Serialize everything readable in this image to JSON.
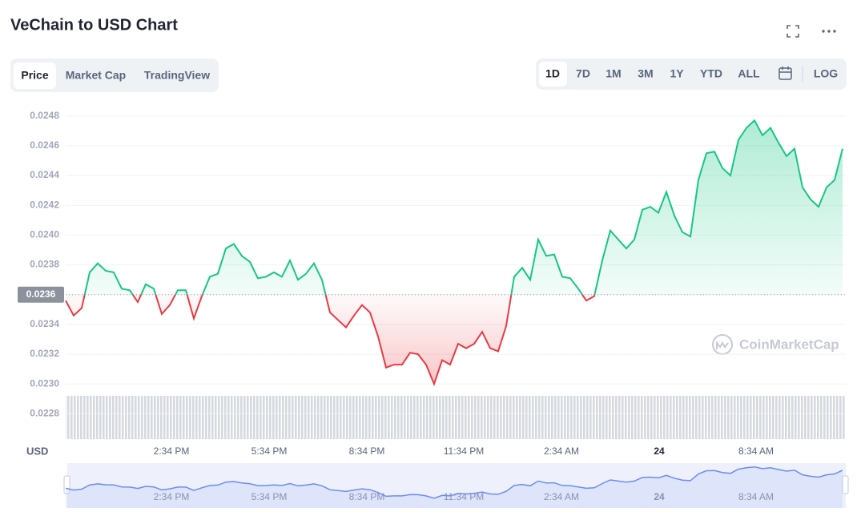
{
  "header": {
    "title": "VeChain to USD Chart"
  },
  "tabs": [
    "Price",
    "Market Cap",
    "TradingView"
  ],
  "active_tab": 0,
  "ranges": [
    "1D",
    "7D",
    "1M",
    "3M",
    "1Y",
    "YTD",
    "ALL"
  ],
  "active_range": 0,
  "log_button": "LOG",
  "chart_data": {
    "type": "line",
    "currency_label": "USD",
    "watermark": "CoinMarketCap",
    "colors": {
      "up": "#16c784",
      "down": "#ea3943",
      "navigator": "#6a8cf2"
    },
    "baseline": 0.0236,
    "values": [
      0.02356,
      0.02346,
      0.02351,
      0.02375,
      0.02381,
      0.02376,
      0.02375,
      0.02364,
      0.02363,
      0.02355,
      0.02367,
      0.02364,
      0.02347,
      0.02353,
      0.02363,
      0.02363,
      0.02344,
      0.02359,
      0.02372,
      0.02374,
      0.02391,
      0.02394,
      0.02386,
      0.02382,
      0.02371,
      0.02372,
      0.02375,
      0.02372,
      0.02383,
      0.0237,
      0.02374,
      0.02381,
      0.0237,
      0.02348,
      0.02343,
      0.02338,
      0.02346,
      0.02353,
      0.02348,
      0.02332,
      0.02311,
      0.02313,
      0.02313,
      0.02321,
      0.0232,
      0.02313,
      0.023,
      0.02316,
      0.02313,
      0.02327,
      0.02324,
      0.02327,
      0.02335,
      0.02324,
      0.02322,
      0.02339,
      0.02372,
      0.02378,
      0.0237,
      0.02397,
      0.02386,
      0.02387,
      0.02372,
      0.02371,
      0.02364,
      0.02356,
      0.02359,
      0.02383,
      0.02403,
      0.02397,
      0.02391,
      0.02397,
      0.02417,
      0.02419,
      0.02415,
      0.02429,
      0.02413,
      0.02402,
      0.02399,
      0.02437,
      0.02455,
      0.02456,
      0.02445,
      0.0244,
      0.02464,
      0.02472,
      0.02477,
      0.02467,
      0.02472,
      0.02462,
      0.02453,
      0.02458,
      0.02432,
      0.02424,
      0.02419,
      0.02432,
      0.02437,
      0.02458
    ],
    "xlim": [
      0,
      97.4
    ],
    "xticks": [
      {
        "value": 13.2,
        "label": "2:34 PM"
      },
      {
        "value": 25.4,
        "label": "5:34 PM"
      },
      {
        "value": 37.6,
        "label": "8:34 PM"
      },
      {
        "value": 49.7,
        "label": "11:34 PM"
      },
      {
        "value": 61.9,
        "label": "2:34 AM"
      },
      {
        "value": 74.1,
        "label": "24"
      },
      {
        "value": 86.2,
        "label": "8:34 AM"
      }
    ],
    "ylim": [
      0.02263,
      0.02489
    ],
    "yticks": [
      0.0228,
      {
        "value": 0.023,
        "label": "0.0230"
      },
      0.0232,
      0.0234,
      0.0236,
      0.0238,
      {
        "value": 0.024,
        "label": "0.0240"
      },
      0.0242,
      0.0244,
      0.0246,
      0.0248
    ],
    "grid": true
  }
}
